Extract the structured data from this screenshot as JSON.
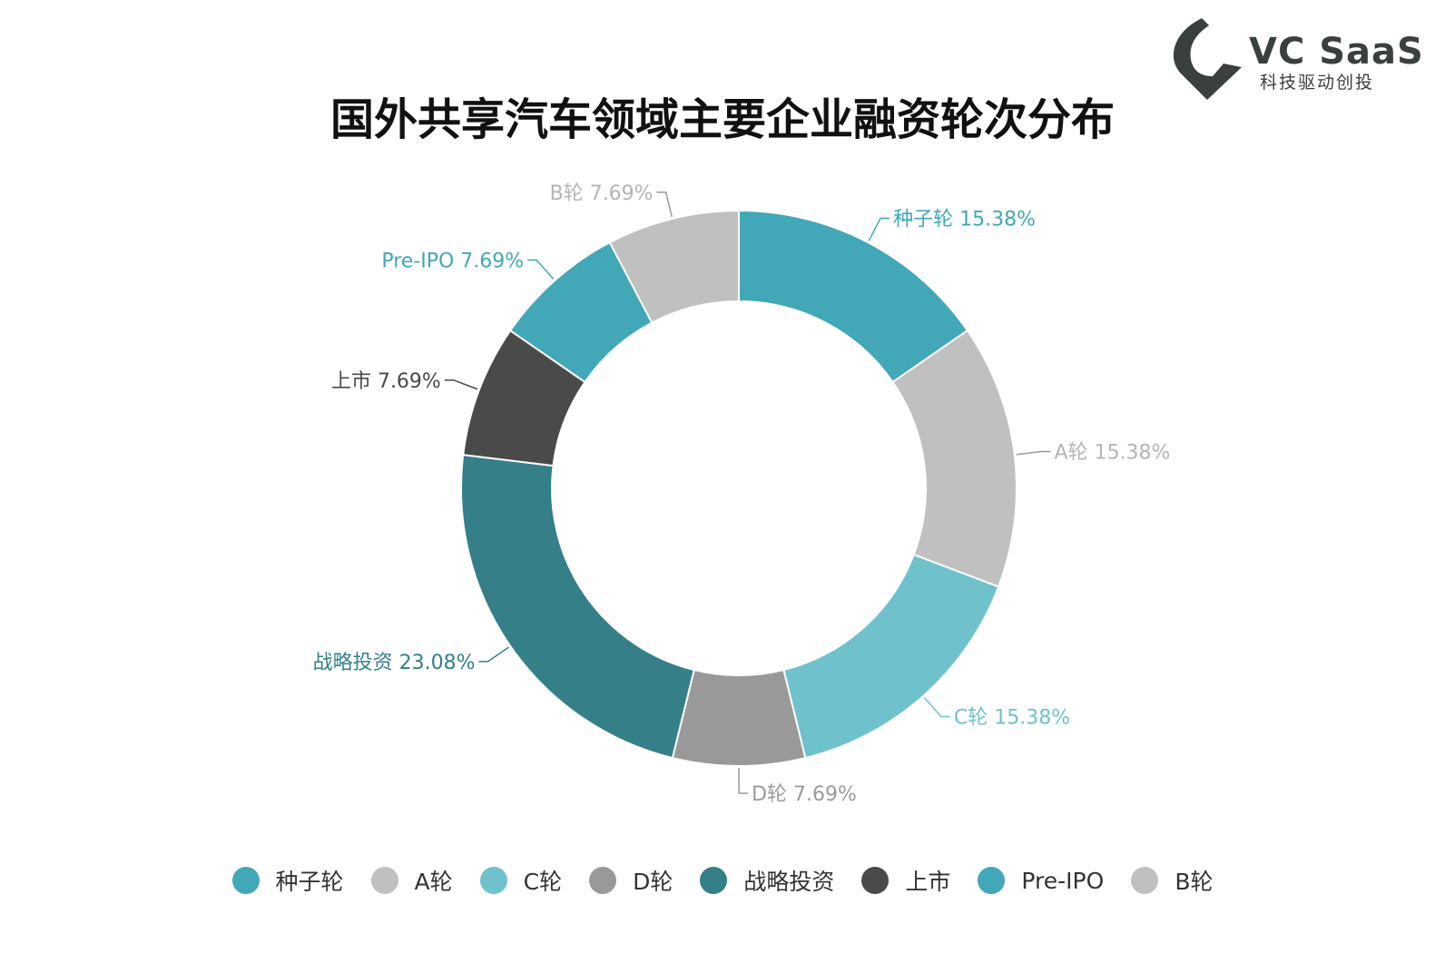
{
  "logo": {
    "name": "VC SaaS",
    "tagline": "科技驱动创投",
    "color": "#3a3f3f"
  },
  "chart_data": {
    "type": "pie",
    "style": "donut",
    "title": "国外共享汽车领域主要企业融资轮次分布",
    "legend_position": "bottom",
    "slices": [
      {
        "label": "种子轮",
        "value": 15.38,
        "display": "15.38%",
        "color": "#42a7b6"
      },
      {
        "label": "A轮",
        "value": 15.38,
        "display": "15.38%",
        "color": "#c0c0c0"
      },
      {
        "label": "C轮",
        "value": 15.38,
        "display": "15.38%",
        "color": "#6fc1cb"
      },
      {
        "label": "D轮",
        "value": 7.69,
        "display": "7.69%",
        "color": "#999999"
      },
      {
        "label": "战略投资",
        "value": 23.08,
        "display": "23.08%",
        "color": "#347f88"
      },
      {
        "label": "上市",
        "value": 7.69,
        "display": "7.69%",
        "color": "#4a4a4a"
      },
      {
        "label": "Pre-IPO",
        "value": 7.69,
        "display": "7.69%",
        "color": "#42a7b6"
      },
      {
        "label": "B轮",
        "value": 7.69,
        "display": "7.69%",
        "color": "#c0c0c0"
      }
    ]
  }
}
